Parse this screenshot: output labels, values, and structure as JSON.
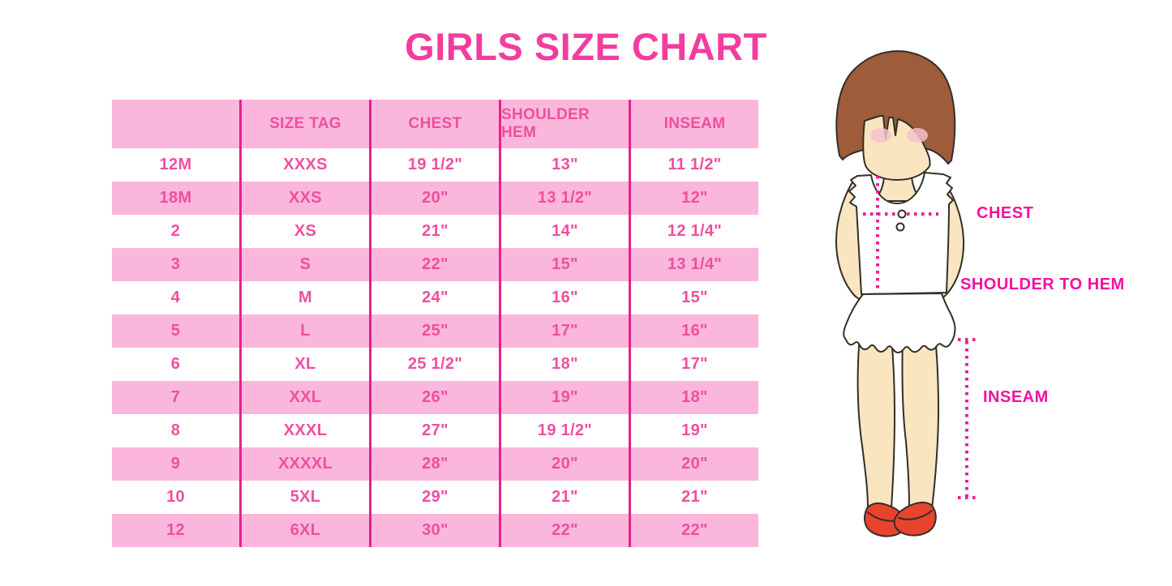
{
  "title": "GIRLS SIZE CHART",
  "chart_data": {
    "type": "table",
    "title": "GIRLS SIZE CHART",
    "columns": [
      "",
      "SIZE TAG",
      "CHEST",
      "SHOULDER HEM",
      "INSEAM"
    ],
    "rows": [
      [
        "12M",
        "XXXS",
        "19 1/2\"",
        "13\"",
        "11 1/2\""
      ],
      [
        "18M",
        "XXS",
        "20\"",
        "13 1/2\"",
        "12\""
      ],
      [
        "2",
        "XS",
        "21\"",
        "14\"",
        "12 1/4\""
      ],
      [
        "3",
        "S",
        "22\"",
        "15\"",
        "13 1/4\""
      ],
      [
        "4",
        "M",
        "24\"",
        "16\"",
        "15\""
      ],
      [
        "5",
        "L",
        "25\"",
        "17\"",
        "16\""
      ],
      [
        "6",
        "XL",
        "25 1/2\"",
        "18\"",
        "17\""
      ],
      [
        "7",
        "XXL",
        "26\"",
        "19\"",
        "18\""
      ],
      [
        "8",
        "XXXL",
        "27\"",
        "19 1/2\"",
        "19\""
      ],
      [
        "9",
        "XXXXL",
        "28\"",
        "20\"",
        "20\""
      ],
      [
        "10",
        "5XL",
        "29\"",
        "21\"",
        "21\""
      ],
      [
        "12",
        "6XL",
        "30\"",
        "22\"",
        "22\""
      ]
    ],
    "row_stripe_pattern": "header pink, then alternating white/pink starting white"
  },
  "diagram_labels": {
    "chest": "CHEST",
    "shoulder_to_hem": "SHOULDER TO HEM",
    "inseam": "INSEAM"
  },
  "colors": {
    "title_pink": "#F43C9E",
    "row_pink": "#FBB7DB",
    "cell_text_pink": "#EE4FA0",
    "column_line_magenta": "#E7218D",
    "label_magenta": "#F311A0",
    "dotted_line_magenta": "#EE1C96",
    "hair_brown": "#9E5C3B",
    "skin_cream": "#F9E6C1",
    "blush_pink": "#F5C3CB",
    "shoe_red": "#E8432C",
    "outline_dark": "#332E2A"
  }
}
